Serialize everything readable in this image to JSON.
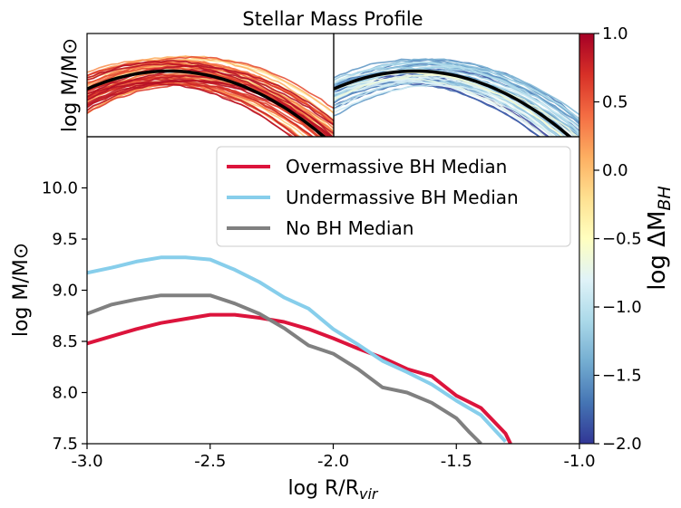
{
  "title": "Stellar Mass Profile",
  "top_panel": {
    "ylabel": "log M/M⊙"
  },
  "colorbar": {
    "label": "log ΔM",
    "label_sub": "BH",
    "ticks": [
      "1.0",
      "0.5",
      "0.0",
      "−0.5",
      "−1.0",
      "−1.5",
      "−2.0"
    ],
    "range": [
      -2.0,
      1.0
    ],
    "colormap": "RdYlBu"
  },
  "chart_data": {
    "type": "line",
    "title": "Stellar Mass Profile",
    "xlabel": "log R/R",
    "xlabel_sub": "vir",
    "ylabel": "log M/M⊙",
    "xlim": [
      -3.0,
      -1.0
    ],
    "ylim": [
      7.5,
      10.5
    ],
    "xticks": [
      "-3.0",
      "-2.5",
      "-2.0",
      "-1.5",
      "-1.0"
    ],
    "yticks": [
      "7.5",
      "8.0",
      "8.5",
      "9.0",
      "9.5",
      "10.0"
    ],
    "legend_position": "top-right",
    "series": [
      {
        "name": "Overmassive BH Median",
        "color": "#dc143c",
        "x": [
          -3.0,
          -2.9,
          -2.8,
          -2.7,
          -2.6,
          -2.5,
          -2.4,
          -2.3,
          -2.2,
          -2.1,
          -2.0,
          -1.9,
          -1.8,
          -1.7,
          -1.6,
          -1.5,
          -1.4,
          -1.3,
          -1.28
        ],
        "y": [
          8.48,
          8.55,
          8.62,
          8.68,
          8.72,
          8.76,
          8.76,
          8.73,
          8.69,
          8.62,
          8.53,
          8.43,
          8.34,
          8.23,
          8.16,
          7.97,
          7.85,
          7.6,
          7.5
        ]
      },
      {
        "name": "Undermassive BH Median",
        "color": "#87ceeb",
        "x": [
          -3.0,
          -2.9,
          -2.8,
          -2.7,
          -2.6,
          -2.5,
          -2.4,
          -2.3,
          -2.2,
          -2.1,
          -2.0,
          -1.9,
          -1.8,
          -1.7,
          -1.6,
          -1.5,
          -1.4,
          -1.3
        ],
        "y": [
          9.17,
          9.22,
          9.28,
          9.32,
          9.32,
          9.3,
          9.2,
          9.08,
          8.93,
          8.82,
          8.62,
          8.47,
          8.31,
          8.2,
          8.08,
          7.92,
          7.78,
          7.52
        ]
      },
      {
        "name": "No BH Median",
        "color": "#808080",
        "x": [
          -3.0,
          -2.9,
          -2.8,
          -2.7,
          -2.6,
          -2.5,
          -2.4,
          -2.3,
          -2.2,
          -2.1,
          -2.0,
          -1.9,
          -1.8,
          -1.7,
          -1.6,
          -1.5,
          -1.45,
          -1.4
        ],
        "y": [
          8.77,
          8.86,
          8.91,
          8.95,
          8.95,
          8.95,
          8.87,
          8.77,
          8.63,
          8.46,
          8.38,
          8.23,
          8.05,
          8.0,
          7.9,
          7.75,
          7.62,
          7.5
        ]
      }
    ]
  }
}
